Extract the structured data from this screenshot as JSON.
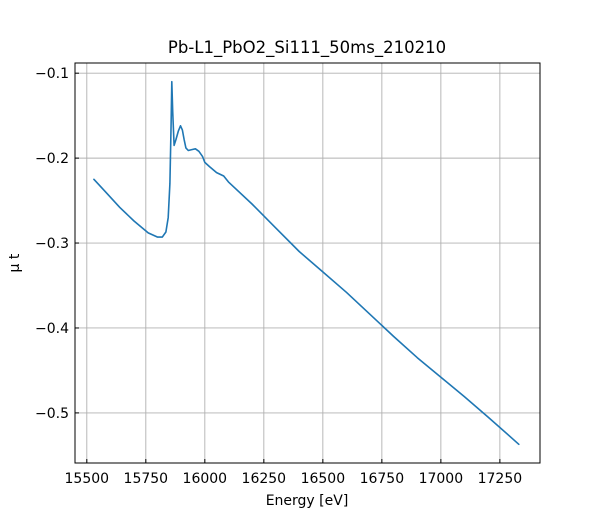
{
  "chart_data": {
    "type": "line",
    "title": "Pb-L1_PbO2_Si111_50ms_210210",
    "xlabel": "Energy [eV]",
    "ylabel": "μ t",
    "xlim": [
      15450,
      17420
    ],
    "ylim": [
      -0.559,
      -0.088
    ],
    "x_ticks": [
      15500,
      15750,
      16000,
      16250,
      16500,
      16750,
      17000,
      17250
    ],
    "x_tick_labels": [
      "15500",
      "15750",
      "16000",
      "16250",
      "16500",
      "16750",
      "17000",
      "17250"
    ],
    "y_ticks": [
      -0.1,
      -0.2,
      -0.3,
      -0.4,
      -0.5
    ],
    "y_tick_labels": [
      "−0.1",
      "−0.2",
      "−0.3",
      "−0.4",
      "−0.5"
    ],
    "grid": true,
    "legend": "none",
    "series": [
      {
        "color": "#1f77b4",
        "x": [
          15530,
          15580,
          15640,
          15700,
          15760,
          15800,
          15820,
          15835,
          15845,
          15852,
          15857,
          15860,
          15864,
          15870,
          15878,
          15888,
          15897,
          15905,
          15912,
          15920,
          15930,
          15945,
          15960,
          15975,
          15990,
          16000,
          16020,
          16050,
          16080,
          16100,
          16200,
          16300,
          16400,
          16500,
          16600,
          16700,
          16800,
          16900,
          17000,
          17100,
          17200,
          17330
        ],
        "y": [
          -0.225,
          -0.24,
          -0.258,
          -0.274,
          -0.288,
          -0.293,
          -0.293,
          -0.287,
          -0.27,
          -0.23,
          -0.16,
          -0.11,
          -0.145,
          -0.185,
          -0.178,
          -0.168,
          -0.162,
          -0.167,
          -0.178,
          -0.188,
          -0.191,
          -0.19,
          -0.189,
          -0.192,
          -0.198,
          -0.205,
          -0.21,
          -0.217,
          -0.221,
          -0.228,
          -0.254,
          -0.282,
          -0.31,
          -0.334,
          -0.358,
          -0.384,
          -0.41,
          -0.435,
          -0.458,
          -0.481,
          -0.505,
          -0.537
        ]
      }
    ]
  }
}
